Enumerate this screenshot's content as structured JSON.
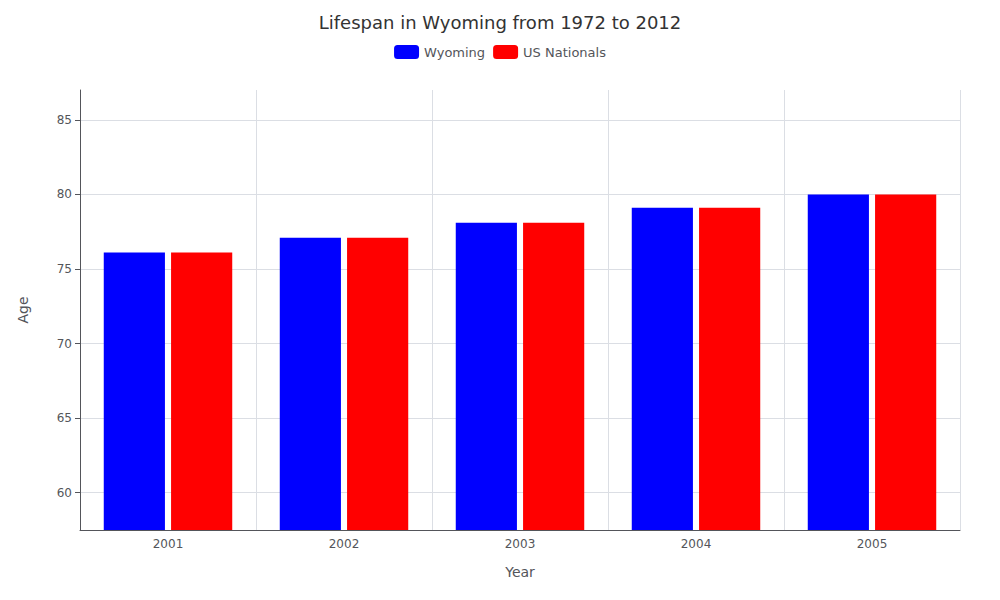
{
  "chart_data": {
    "type": "bar",
    "title": "Lifespan in Wyoming from 1972 to 2012",
    "x_label": "Year",
    "y_label": "Age",
    "categories": [
      "2001",
      "2002",
      "2003",
      "2004",
      "2005"
    ],
    "series": [
      {
        "name": "Wyoming",
        "color": "#0000ff",
        "values": [
          76.1,
          77.1,
          78.1,
          79.1,
          80.0
        ]
      },
      {
        "name": "US Nationals",
        "color": "#ff0000",
        "values": [
          76.1,
          77.1,
          78.1,
          79.1,
          80.0
        ]
      }
    ],
    "ylim": [
      57.5,
      87
    ],
    "yticks": [
      60,
      65,
      70,
      75,
      80,
      85
    ],
    "grid": true,
    "legend": "top"
  }
}
